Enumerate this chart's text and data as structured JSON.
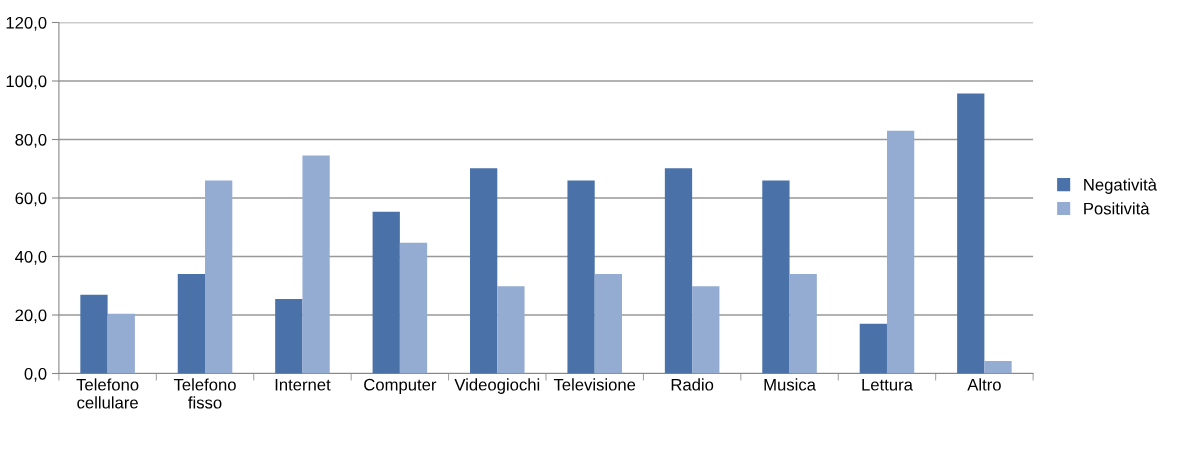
{
  "chart_data": {
    "type": "bar",
    "categories": [
      "Telefono\ncellulare",
      "Telefono\nfisso",
      "Internet",
      "Computer",
      "Videogiochi",
      "Televisione",
      "Radio",
      "Musica",
      "Lettura",
      "Altro"
    ],
    "series": [
      {
        "name": "Negatività",
        "color": "#4a72a8",
        "values": [
          26.9,
          34.0,
          25.5,
          55.3,
          70.2,
          66.0,
          70.2,
          66.0,
          17.0,
          95.7
        ]
      },
      {
        "name": "Positività",
        "color": "#94abd2",
        "values": [
          20.4,
          66.0,
          74.5,
          44.7,
          29.8,
          34.0,
          29.8,
          34.0,
          83.0,
          4.3
        ]
      }
    ],
    "ylim": [
      0,
      120
    ],
    "yticks": [
      {
        "value": 0,
        "label": "0,0"
      },
      {
        "value": 20,
        "label": "20,0"
      },
      {
        "value": 40,
        "label": "40,0"
      },
      {
        "value": 60,
        "label": "60,0"
      },
      {
        "value": 80,
        "label": "80,0"
      },
      {
        "value": 100,
        "label": "100,0"
      },
      {
        "value": 120,
        "label": "120,0"
      }
    ],
    "grid": "y",
    "legend": "right"
  }
}
